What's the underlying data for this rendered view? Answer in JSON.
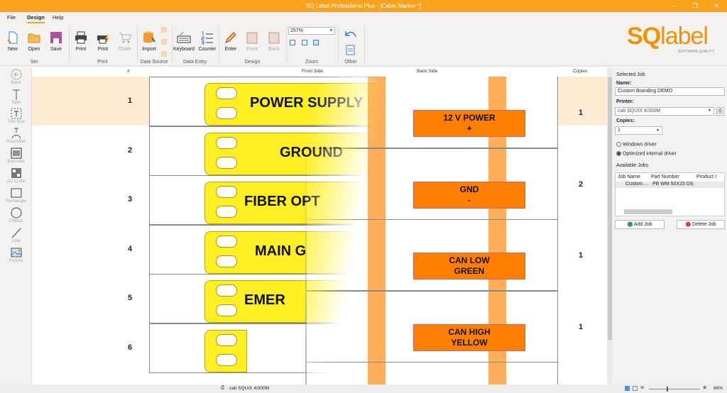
{
  "window": {
    "title": "SQ Label Professional Plus - [Cable Marker *]",
    "controls": [
      "minimize",
      "restore",
      "close"
    ]
  },
  "menu": {
    "tabs": [
      "File",
      "Design",
      "Help"
    ],
    "active": "Design"
  },
  "ribbon": {
    "groups": [
      {
        "label": "Set",
        "buttons": [
          "New",
          "Open",
          "Save"
        ]
      },
      {
        "label": "Print",
        "buttons": [
          "Print",
          "Print",
          "Order"
        ]
      },
      {
        "label": "Data Source",
        "buttons": [
          "Import"
        ]
      },
      {
        "label": "Data Entry",
        "buttons": [
          "Keyboard",
          "Counter"
        ]
      },
      {
        "label": "Design",
        "buttons": [
          "Enter",
          "Front",
          "Back"
        ]
      },
      {
        "label": "Zoom",
        "zoom_value": "257%"
      },
      {
        "label": "Other"
      }
    ]
  },
  "logo": {
    "text": "SQlabel",
    "tagline": "SOFTWARE QUALITY",
    "color": "#f39200"
  },
  "toolbox": [
    "Back",
    "Text",
    "Text Box",
    "Rounded",
    "Barcode",
    "2D Code",
    "Rectangle",
    "Ellipse",
    "Line",
    "Picture"
  ],
  "grid": {
    "headers": {
      "num": "#",
      "front": "Front Side",
      "back": "Back Side",
      "copies": "Copies"
    },
    "front_rows": [
      {
        "num": "1",
        "text": "POWER SUPPLY"
      },
      {
        "num": "2",
        "text": "GROUND"
      },
      {
        "num": "3",
        "text": "FIBER OPT"
      },
      {
        "num": "4",
        "text": "MAIN G"
      },
      {
        "num": "5",
        "text": "EMER"
      },
      {
        "num": "6",
        "text": ""
      }
    ],
    "back_rows": [
      {
        "line1": "12 V POWER",
        "line2": "+",
        "copies": "1"
      },
      {
        "line1": "GND",
        "line2": "-",
        "copies": "2"
      },
      {
        "line1": "CAN LOW",
        "line2": "GREEN",
        "copies": "1"
      },
      {
        "line1": "CAN HIGH",
        "line2": "YELLOW",
        "copies": "1"
      }
    ],
    "colors": {
      "front_label": "#fdef23",
      "back_label": "#ff8000",
      "selected_row": "#fdebd3"
    }
  },
  "panel": {
    "selected_job": "Selected Job",
    "name_label": "Name:",
    "name_value": "Custom Branding DEMO",
    "printer_label": "Printer:",
    "printer_value": "cab SQUIX 4/300M",
    "copies_label": "Copies:",
    "copies_value": "1",
    "driver_options": [
      "Windows driver",
      "Optimized internal driver"
    ],
    "driver_selected": "Optimized internal driver",
    "available_jobs": "Available Jobs",
    "columns": [
      "Job Name",
      "Part Number",
      "Product I"
    ],
    "jobs": [
      {
        "name": "Custom ...",
        "part": "PB WM 50X15 DS"
      }
    ],
    "add_job": "Add Job",
    "delete_job": "Delete Job"
  },
  "status": {
    "printer": "cab SQUIX 4/300M",
    "zoom": "84%"
  }
}
